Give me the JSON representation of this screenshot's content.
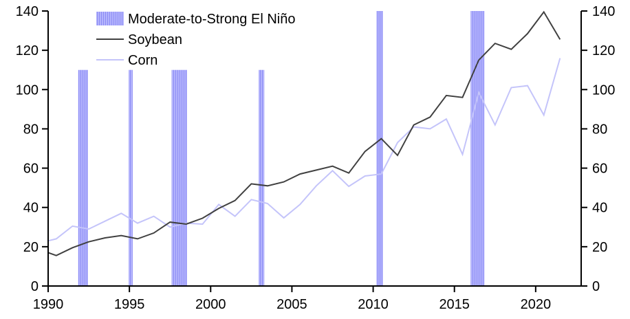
{
  "chart_data": {
    "type": "line",
    "title": "",
    "xlabel": "",
    "ylabel": "",
    "xlim": [
      1990,
      2022.8
    ],
    "ylim": [
      0,
      140
    ],
    "y2lim": [
      0,
      140
    ],
    "grid": false,
    "legend_placement": "top-left",
    "x_ticks": [
      1990,
      1995,
      2000,
      2005,
      2010,
      2015,
      2020
    ],
    "y_ticks": [
      0,
      20,
      40,
      60,
      80,
      100,
      120,
      140
    ],
    "legend": [
      {
        "label": "Moderate-to-Strong El Niño",
        "kind": "bar",
        "color": "#a6a6fb"
      },
      {
        "label": " Soybean",
        "kind": "line",
        "color": "#404040"
      },
      {
        "label": "Corn",
        "kind": "line",
        "color": "#c4c4fa"
      }
    ],
    "x": [
      1990.0,
      1990.5,
      1991.5,
      1992.5,
      1993.5,
      1994.5,
      1995.5,
      1996.5,
      1997.5,
      1998.5,
      1999.5,
      2000.5,
      2001.5,
      2002.5,
      2003.5,
      2004.5,
      2005.5,
      2006.5,
      2007.5,
      2008.5,
      2009.5,
      2010.5,
      2011.5,
      2012.5,
      2013.5,
      2014.5,
      2015.5,
      2016.5,
      2017.5,
      2018.5,
      2019.5,
      2020.5,
      2021.5
    ],
    "series": [
      {
        "name": "Soybean",
        "color": "#404040",
        "values": [
          17,
          15.5,
          19.5,
          22.5,
          24.5,
          25.7,
          24,
          27,
          32.5,
          31.5,
          34.5,
          39.5,
          43.5,
          52,
          51,
          53,
          57,
          59,
          61,
          57.5,
          68.5,
          75,
          66.5,
          82,
          86,
          97,
          96,
          115,
          123.5,
          120.5,
          128.5,
          139.5,
          125.5
        ]
      },
      {
        "name": "Corn",
        "color": "#c4c4fa",
        "values": [
          23,
          24,
          30.5,
          29,
          33,
          37,
          32,
          35.5,
          30,
          32,
          31.5,
          41.5,
          35.5,
          44,
          42,
          34.7,
          41.5,
          51,
          58.7,
          50.7,
          56,
          57,
          73,
          81,
          80,
          85,
          67,
          98.5,
          82,
          101,
          102,
          87,
          116
        ]
      }
    ],
    "el_nino_periods": [
      {
        "start": 1991.85,
        "end": 1992.45,
        "height": 110
      },
      {
        "start": 1994.95,
        "end": 1995.2,
        "height": 110
      },
      {
        "start": 1997.6,
        "end": 1998.55,
        "height": 110
      },
      {
        "start": 2002.95,
        "end": 2003.3,
        "height": 110
      },
      {
        "start": 2010.2,
        "end": 2010.6,
        "height": 140
      },
      {
        "start": 2016.0,
        "end": 2016.85,
        "height": 140
      }
    ]
  }
}
